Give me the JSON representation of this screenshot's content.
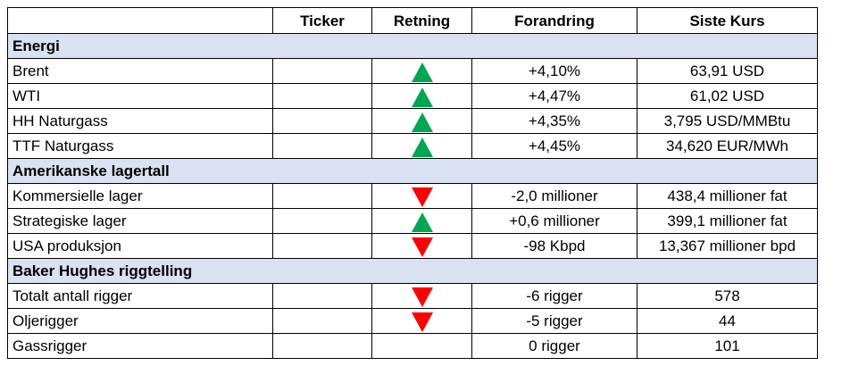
{
  "headers": [
    "",
    "Ticker",
    "Retning",
    "Forandring",
    "Siste Kurs"
  ],
  "sections": [
    {
      "title": "Energi",
      "rows": [
        {
          "name": "Brent",
          "ticker": "",
          "direction": "up",
          "change": "+4,10%",
          "last": "63,91 USD"
        },
        {
          "name": "WTI",
          "ticker": "",
          "direction": "up",
          "change": "+4,47%",
          "last": "61,02 USD"
        },
        {
          "name": "HH Naturgass",
          "ticker": "",
          "direction": "up",
          "change": "+4,35%",
          "last": "3,795 USD/MMBtu"
        },
        {
          "name": "TTF Naturgass",
          "ticker": "",
          "direction": "up",
          "change": "+4,45%",
          "last": "34,620 EUR/MWh"
        }
      ]
    },
    {
      "title": "Amerikanske lagertall",
      "rows": [
        {
          "name": "Kommersielle lager",
          "ticker": "",
          "direction": "down",
          "change": "-2,0 millioner",
          "last": "438,4 millioner fat"
        },
        {
          "name": "Strategiske lager",
          "ticker": "",
          "direction": "up",
          "change": "+0,6 millioner",
          "last": "399,1 millioner fat"
        },
        {
          "name": "USA produksjon",
          "ticker": "",
          "direction": "down",
          "change": "-98 Kbpd",
          "last": "13,367 millioner bpd"
        }
      ]
    },
    {
      "title": "Baker Hughes riggtelling",
      "rows": [
        {
          "name": "Totalt antall rigger",
          "ticker": "",
          "direction": "down",
          "change": "-6 rigger",
          "last": "578"
        },
        {
          "name": "Oljerigger",
          "ticker": "",
          "direction": "down",
          "change": "-5 rigger",
          "last": "44"
        },
        {
          "name": "Gassrigger",
          "ticker": "",
          "direction": "none",
          "change": "0 rigger",
          "last": "101"
        }
      ]
    }
  ],
  "icons": {
    "up": "green-up-triangle-icon",
    "down": "red-down-triangle-icon"
  },
  "colors": {
    "section_bg": "#d9e1f2",
    "up": "#00a651",
    "down": "#ff0000",
    "border": "#000000"
  }
}
